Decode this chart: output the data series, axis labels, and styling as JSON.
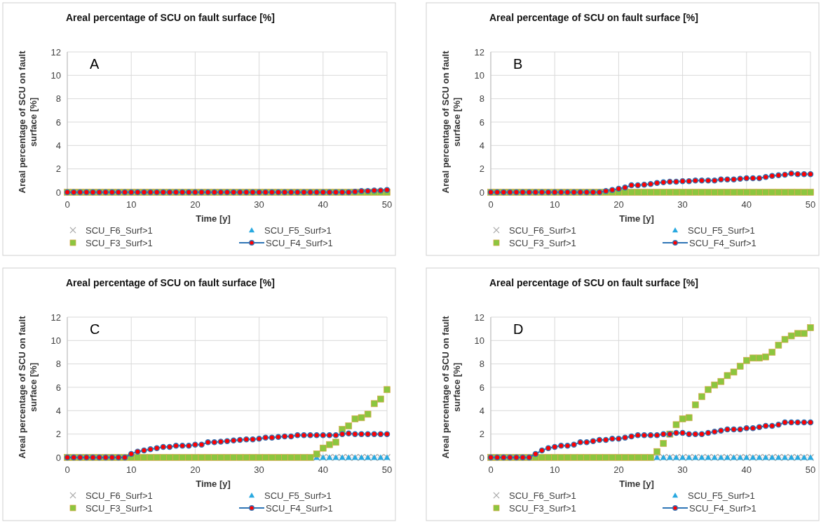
{
  "chart_data": [
    {
      "type": "scatter",
      "title": "Areal percentage of SCU on fault surface [%]",
      "xlabel": "Time [y]",
      "ylabel": "Areal percentage of SCU on fault surface [%]",
      "annotations": [
        "A"
      ],
      "grid": true,
      "legend": "bottom",
      "xlim": [
        0,
        50
      ],
      "xticks": [
        0,
        10,
        20,
        30,
        40,
        50
      ],
      "ylim": [
        0,
        12
      ],
      "yticks": [
        0,
        2,
        4,
        6,
        8,
        10,
        12
      ],
      "x": [
        0,
        1,
        2,
        3,
        4,
        5,
        6,
        7,
        8,
        9,
        10,
        11,
        12,
        13,
        14,
        15,
        16,
        17,
        18,
        19,
        20,
        21,
        22,
        23,
        24,
        25,
        26,
        27,
        28,
        29,
        30,
        31,
        32,
        33,
        34,
        35,
        36,
        37,
        38,
        39,
        40,
        41,
        42,
        43,
        44,
        45,
        46,
        47,
        48,
        49,
        50
      ],
      "series": [
        {
          "name": "SCU_F6_Surf>1",
          "marker": "cross",
          "color": "#a6a6a6",
          "values": [
            null,
            null,
            null,
            null,
            null,
            null,
            null,
            null,
            null,
            null,
            null,
            null,
            null,
            null,
            null,
            null,
            null,
            null,
            null,
            null,
            null,
            null,
            null,
            null,
            null,
            null,
            null,
            null,
            null,
            null,
            null,
            null,
            null,
            null,
            null,
            null,
            null,
            null,
            null,
            null,
            null,
            null,
            null,
            null,
            null,
            null,
            null,
            null,
            null,
            null,
            null
          ]
        },
        {
          "name": "SCU_F5_Surf>1",
          "marker": "triangle",
          "color": "#29a9e0",
          "values": [
            null,
            null,
            null,
            null,
            null,
            null,
            null,
            null,
            null,
            null,
            null,
            null,
            null,
            null,
            null,
            null,
            null,
            null,
            null,
            null,
            null,
            null,
            null,
            null,
            null,
            null,
            null,
            null,
            null,
            null,
            null,
            null,
            null,
            null,
            null,
            null,
            null,
            null,
            null,
            null,
            null,
            null,
            null,
            null,
            null,
            null,
            null,
            null,
            null,
            null,
            null
          ]
        },
        {
          "name": "SCU_F3_Surf>1",
          "marker": "square",
          "color": "#8cc63f",
          "values": [
            0,
            0,
            0,
            0,
            0,
            0,
            0,
            0,
            0,
            0,
            0,
            0,
            0,
            0,
            0,
            0,
            0,
            0,
            0,
            0,
            0,
            0,
            0,
            0,
            0,
            0,
            0,
            0,
            0,
            0,
            0,
            0,
            0,
            0,
            0,
            0,
            0,
            0,
            0,
            0,
            0,
            0,
            0,
            0,
            0,
            0,
            0,
            0,
            0,
            0,
            0
          ]
        },
        {
          "name": "SCU_F4_Surf>1",
          "type": "line",
          "marker": "circle",
          "color": "#2e75b6",
          "values": [
            0,
            0,
            0,
            0,
            0,
            0,
            0,
            0,
            0,
            0,
            0,
            0,
            0,
            0,
            0,
            0,
            0,
            0,
            0,
            0,
            0,
            0,
            0,
            0,
            0,
            0,
            0,
            0,
            0,
            0,
            0,
            0,
            0,
            0,
            0,
            0,
            0,
            0,
            0,
            0,
            0,
            0,
            0,
            0,
            0,
            0.05,
            0.1,
            0.1,
            0.15,
            0.15,
            0.2
          ]
        }
      ]
    },
    {
      "type": "scatter",
      "title": "Areal percentage of SCU on fault surface [%]",
      "xlabel": "Time [y]",
      "ylabel": "Areal percentage of SCU on fault surface [%]",
      "annotations": [
        "B"
      ],
      "grid": true,
      "legend": "bottom",
      "xlim": [
        0,
        50
      ],
      "xticks": [
        0,
        10,
        20,
        30,
        40,
        50
      ],
      "ylim": [
        0,
        12
      ],
      "yticks": [
        0,
        2,
        4,
        6,
        8,
        10,
        12
      ],
      "x": [
        0,
        1,
        2,
        3,
        4,
        5,
        6,
        7,
        8,
        9,
        10,
        11,
        12,
        13,
        14,
        15,
        16,
        17,
        18,
        19,
        20,
        21,
        22,
        23,
        24,
        25,
        26,
        27,
        28,
        29,
        30,
        31,
        32,
        33,
        34,
        35,
        36,
        37,
        38,
        39,
        40,
        41,
        42,
        43,
        44,
        45,
        46,
        47,
        48,
        49,
        50
      ],
      "series": [
        {
          "name": "SCU_F6_Surf>1",
          "marker": "cross",
          "color": "#a6a6a6",
          "values": [
            null,
            null,
            null,
            null,
            null,
            null,
            null,
            null,
            null,
            null,
            null,
            null,
            null,
            null,
            null,
            null,
            null,
            null,
            null,
            null,
            null,
            null,
            null,
            null,
            null,
            null,
            null,
            null,
            null,
            null,
            null,
            null,
            null,
            null,
            null,
            null,
            null,
            null,
            null,
            null,
            null,
            null,
            null,
            null,
            null,
            null,
            null,
            null,
            null,
            null,
            null
          ]
        },
        {
          "name": "SCU_F5_Surf>1",
          "marker": "triangle",
          "color": "#29a9e0",
          "values": [
            null,
            null,
            null,
            null,
            null,
            null,
            null,
            null,
            null,
            null,
            null,
            null,
            null,
            null,
            null,
            null,
            null,
            null,
            null,
            null,
            null,
            null,
            null,
            null,
            null,
            null,
            null,
            null,
            null,
            null,
            null,
            null,
            null,
            null,
            null,
            null,
            null,
            null,
            null,
            null,
            null,
            null,
            null,
            null,
            null,
            null,
            null,
            null,
            null,
            null,
            null
          ]
        },
        {
          "name": "SCU_F3_Surf>1",
          "marker": "square",
          "color": "#8cc63f",
          "values": [
            0,
            0,
            0,
            0,
            0,
            0,
            0,
            0,
            0,
            0,
            0,
            0,
            0,
            0,
            0,
            0,
            0,
            0,
            0,
            0,
            0,
            0,
            0,
            0,
            0,
            0,
            0,
            0,
            0,
            0,
            0,
            0,
            0,
            0,
            0,
            0,
            0,
            0,
            0,
            0,
            0,
            0,
            0,
            0,
            0,
            0,
            0,
            0,
            0,
            0,
            0
          ]
        },
        {
          "name": "SCU_F4_Surf>1",
          "type": "line",
          "marker": "circle",
          "color": "#2e75b6",
          "values": [
            0,
            0,
            0,
            0,
            0,
            0,
            0,
            0,
            0,
            0,
            0,
            0,
            0,
            0,
            0,
            0,
            0,
            0,
            0.1,
            0.2,
            0.3,
            0.4,
            0.6,
            0.6,
            0.65,
            0.7,
            0.8,
            0.85,
            0.9,
            0.9,
            0.95,
            0.95,
            1.0,
            1.0,
            1.0,
            1.0,
            1.1,
            1.1,
            1.1,
            1.15,
            1.2,
            1.2,
            1.2,
            1.3,
            1.4,
            1.45,
            1.5,
            1.6,
            1.55,
            1.55,
            1.55
          ]
        }
      ]
    },
    {
      "type": "scatter",
      "title": "Areal percentage of SCU on fault surface [%]",
      "xlabel": "Time [y]",
      "ylabel": "Areal percentage of SCU on fault surface [%]",
      "annotations": [
        "C"
      ],
      "grid": true,
      "legend": "bottom",
      "xlim": [
        0,
        50
      ],
      "xticks": [
        0,
        10,
        20,
        30,
        40,
        50
      ],
      "ylim": [
        0,
        12
      ],
      "yticks": [
        0,
        2,
        4,
        6,
        8,
        10,
        12
      ],
      "x": [
        0,
        1,
        2,
        3,
        4,
        5,
        6,
        7,
        8,
        9,
        10,
        11,
        12,
        13,
        14,
        15,
        16,
        17,
        18,
        19,
        20,
        21,
        22,
        23,
        24,
        25,
        26,
        27,
        28,
        29,
        30,
        31,
        32,
        33,
        34,
        35,
        36,
        37,
        38,
        39,
        40,
        41,
        42,
        43,
        44,
        45,
        46,
        47,
        48,
        49,
        50
      ],
      "series": [
        {
          "name": "SCU_F6_Surf>1",
          "marker": "cross",
          "color": "#a6a6a6",
          "values": [
            null,
            null,
            null,
            null,
            null,
            null,
            null,
            null,
            null,
            null,
            null,
            null,
            null,
            null,
            null,
            null,
            null,
            null,
            null,
            null,
            null,
            null,
            null,
            null,
            null,
            null,
            null,
            null,
            null,
            null,
            null,
            null,
            null,
            null,
            null,
            null,
            null,
            null,
            null,
            0,
            0,
            0,
            0,
            0,
            0,
            0,
            0,
            0,
            0,
            0,
            0
          ]
        },
        {
          "name": "SCU_F5_Surf>1",
          "marker": "triangle",
          "color": "#29a9e0",
          "values": [
            null,
            null,
            null,
            null,
            null,
            null,
            null,
            null,
            null,
            null,
            null,
            null,
            null,
            null,
            null,
            null,
            null,
            null,
            null,
            null,
            null,
            null,
            null,
            null,
            null,
            null,
            null,
            null,
            null,
            null,
            null,
            null,
            null,
            null,
            null,
            null,
            null,
            null,
            null,
            0,
            0,
            0,
            0,
            0,
            0,
            0,
            0,
            0,
            0,
            0,
            0
          ]
        },
        {
          "name": "SCU_F3_Surf>1",
          "marker": "square",
          "color": "#8cc63f",
          "values": [
            0,
            0,
            0,
            0,
            0,
            0,
            0,
            0,
            0,
            0,
            0,
            0,
            0,
            0,
            0,
            0,
            0,
            0,
            0,
            0,
            0,
            0,
            0,
            0,
            0,
            0,
            0,
            0,
            0,
            0,
            0,
            0,
            0,
            0,
            0,
            0,
            0,
            0,
            0,
            0.3,
            0.8,
            1.1,
            1.3,
            2.4,
            2.7,
            3.3,
            3.4,
            3.7,
            4.6,
            5.0,
            5.8
          ]
        },
        {
          "name": "SCU_F4_Surf>1",
          "type": "line",
          "marker": "circle",
          "color": "#2e75b6",
          "values": [
            0,
            0,
            0,
            0,
            0,
            0,
            0,
            0,
            0,
            0,
            0.3,
            0.5,
            0.6,
            0.7,
            0.8,
            0.9,
            0.9,
            1.0,
            1.0,
            1.0,
            1.1,
            1.1,
            1.3,
            1.3,
            1.35,
            1.4,
            1.45,
            1.5,
            1.55,
            1.55,
            1.6,
            1.7,
            1.7,
            1.75,
            1.8,
            1.8,
            1.9,
            1.9,
            1.9,
            1.9,
            1.9,
            1.9,
            1.9,
            2.0,
            2.05,
            2.0,
            2.0,
            2.0,
            2.0,
            2.0,
            2.0
          ]
        }
      ]
    },
    {
      "type": "scatter",
      "title": "Areal percentage of SCU on fault surface [%]",
      "xlabel": "Time [y]",
      "ylabel": "Areal percentage of SCU on fault surface [%]",
      "annotations": [
        "D"
      ],
      "grid": true,
      "legend": "bottom",
      "xlim": [
        0,
        50
      ],
      "xticks": [
        0,
        10,
        20,
        30,
        40,
        50
      ],
      "ylim": [
        0,
        12
      ],
      "yticks": [
        0,
        2,
        4,
        6,
        8,
        10,
        12
      ],
      "x": [
        0,
        1,
        2,
        3,
        4,
        5,
        6,
        7,
        8,
        9,
        10,
        11,
        12,
        13,
        14,
        15,
        16,
        17,
        18,
        19,
        20,
        21,
        22,
        23,
        24,
        25,
        26,
        27,
        28,
        29,
        30,
        31,
        32,
        33,
        34,
        35,
        36,
        37,
        38,
        39,
        40,
        41,
        42,
        43,
        44,
        45,
        46,
        47,
        48,
        49,
        50
      ],
      "series": [
        {
          "name": "SCU_F6_Surf>1",
          "marker": "cross",
          "color": "#a6a6a6",
          "values": [
            null,
            null,
            null,
            null,
            null,
            null,
            null,
            null,
            null,
            null,
            null,
            null,
            null,
            null,
            null,
            null,
            null,
            null,
            null,
            null,
            null,
            null,
            null,
            null,
            null,
            null,
            0,
            0,
            0,
            0,
            0,
            0,
            0,
            0,
            0,
            0,
            0,
            0,
            0,
            0,
            0,
            0,
            0,
            0,
            0,
            0,
            0,
            0,
            0,
            0,
            0
          ]
        },
        {
          "name": "SCU_F5_Surf>1",
          "marker": "triangle",
          "color": "#29a9e0",
          "values": [
            null,
            null,
            null,
            null,
            null,
            null,
            null,
            null,
            null,
            null,
            null,
            null,
            null,
            null,
            null,
            null,
            null,
            null,
            null,
            null,
            null,
            null,
            null,
            null,
            null,
            null,
            0,
            0,
            0,
            0,
            0,
            0,
            0,
            0,
            0,
            0,
            0,
            0,
            0,
            0,
            0,
            0,
            0,
            0,
            0,
            0,
            0,
            0,
            0,
            0,
            0
          ]
        },
        {
          "name": "SCU_F3_Surf>1",
          "marker": "square",
          "color": "#8cc63f",
          "values": [
            0,
            0,
            0,
            0,
            0,
            0,
            0,
            0,
            0,
            0,
            0,
            0,
            0,
            0,
            0,
            0,
            0,
            0,
            0,
            0,
            0,
            0,
            0,
            0,
            0,
            0,
            0.5,
            1.2,
            2.0,
            2.8,
            3.3,
            3.4,
            4.5,
            5.2,
            5.8,
            6.2,
            6.5,
            7.0,
            7.3,
            7.8,
            8.3,
            8.5,
            8.5,
            8.6,
            9.0,
            9.6,
            10.1,
            10.4,
            10.6,
            10.6,
            11.1
          ]
        },
        {
          "name": "SCU_F4_Surf>1",
          "type": "line",
          "marker": "circle",
          "color": "#2e75b6",
          "values": [
            0,
            0,
            0,
            0,
            0,
            0,
            0,
            0.3,
            0.6,
            0.8,
            0.9,
            1.0,
            1.0,
            1.1,
            1.3,
            1.3,
            1.4,
            1.5,
            1.5,
            1.6,
            1.6,
            1.7,
            1.8,
            1.9,
            1.9,
            1.9,
            1.9,
            2.0,
            2.0,
            2.1,
            2.1,
            2.0,
            2.0,
            2.0,
            2.1,
            2.2,
            2.3,
            2.4,
            2.4,
            2.4,
            2.5,
            2.5,
            2.6,
            2.7,
            2.7,
            2.8,
            3.0,
            3.0,
            3.0,
            3.0,
            3.0
          ]
        }
      ]
    }
  ]
}
